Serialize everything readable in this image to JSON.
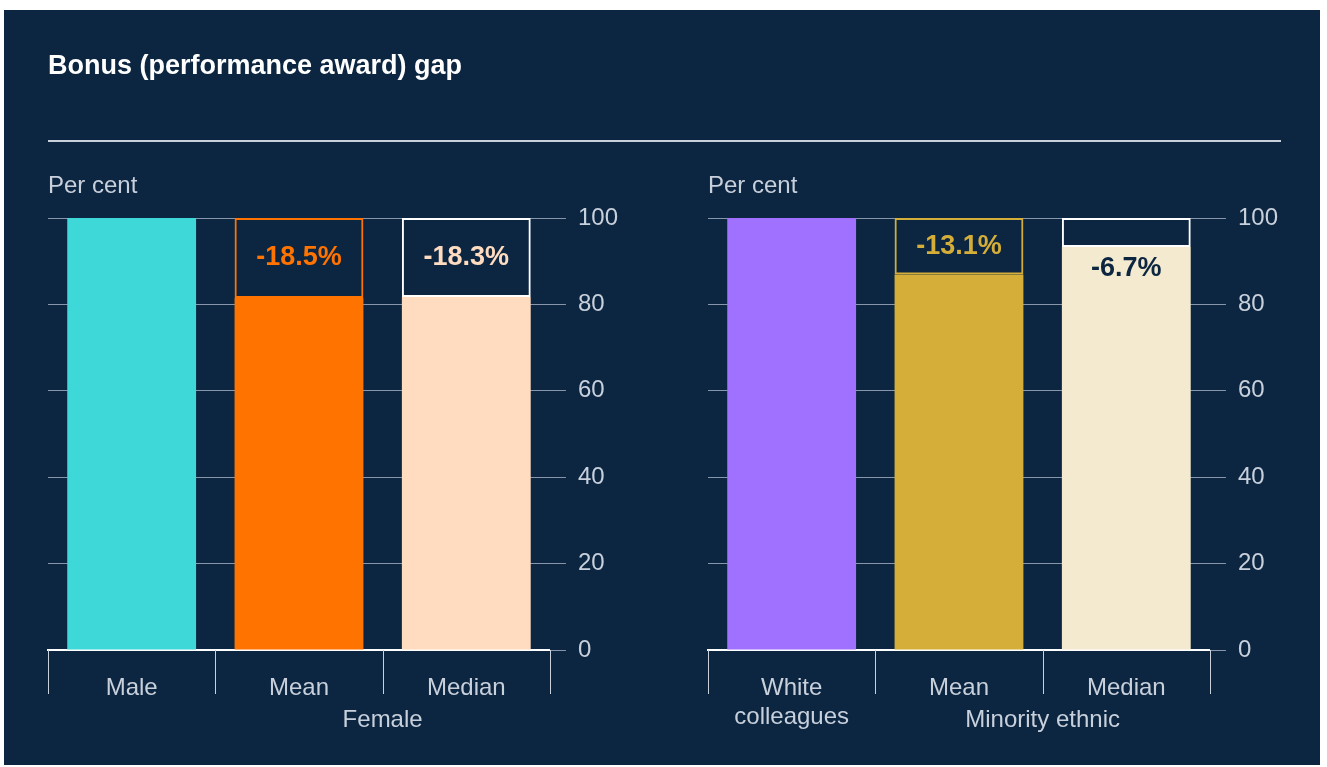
{
  "chart_data": [
    {
      "type": "bar",
      "title": "Bonus (performance award) gap",
      "ylabel": "Per cent",
      "categories": [
        "Male",
        "Mean",
        "Median"
      ],
      "stacked": true,
      "ylim": [
        0,
        100
      ],
      "yticks": [
        0,
        20,
        40,
        60,
        80,
        100
      ],
      "grid": "y",
      "annotations": [
        "Female",
        "-18.5%",
        "-18.3%"
      ],
      "series": [
        {
          "colors": [
            "#3ed8d8",
            "#ff7300",
            "#ffdbc0"
          ],
          "values": [
            100,
            81.5,
            81.7
          ]
        },
        {
          "colors": [
            null,
            "#ff7300",
            "#ffffff"
          ],
          "values": [
            null,
            18.5,
            18.3
          ]
        }
      ]
    },
    {
      "type": "bar",
      "ylabel": "Per cent",
      "categories": [
        "White colleagues",
        "Mean",
        "Median"
      ],
      "stacked": true,
      "ylim": [
        0,
        100
      ],
      "yticks": [
        0,
        20,
        40,
        60,
        80,
        100
      ],
      "grid": "y",
      "annotations": [
        "Minority ethnic",
        "-13.1%",
        "-6.7%"
      ],
      "series": [
        {
          "colors": [
            "#a071ff",
            "#d4ae38",
            "#f4ead0"
          ],
          "values": [
            100,
            86.9,
            93.3
          ]
        },
        {
          "colors": [
            null,
            "#d4ae38",
            "#ffffff"
          ],
          "values": [
            null,
            13.1,
            6.7
          ]
        }
      ]
    }
  ]
}
